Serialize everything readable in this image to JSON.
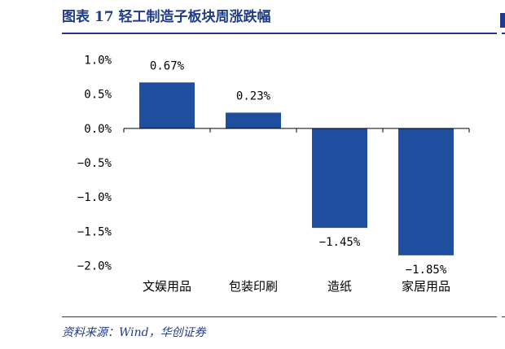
{
  "header": {
    "title": "图表 17    轻工制造子板块周涨跌幅"
  },
  "footer": {
    "source": "资料来源：Wind，华创证券"
  },
  "colors": {
    "bar": "#1f4e9e",
    "accent": "#1f3c88"
  },
  "chart_data": {
    "type": "bar",
    "categories": [
      "文娱用品",
      "包装印刷",
      "造纸",
      "家居用品"
    ],
    "values": [
      0.67,
      0.23,
      -1.45,
      -1.85
    ],
    "value_labels": [
      "0.67%",
      "0.23%",
      "−1.45%",
      "−1.85%"
    ],
    "yticks": [
      1.0,
      0.5,
      0.0,
      -0.5,
      -1.0,
      -1.5,
      -2.0
    ],
    "ytick_labels": [
      "1.0%",
      "0.5%",
      "0.0%",
      "−0.5%",
      "−1.0%",
      "−1.5%",
      "−2.0%"
    ],
    "ylim": [
      -2.0,
      1.0
    ],
    "grid": false,
    "title": "",
    "xlabel": "",
    "ylabel": ""
  }
}
